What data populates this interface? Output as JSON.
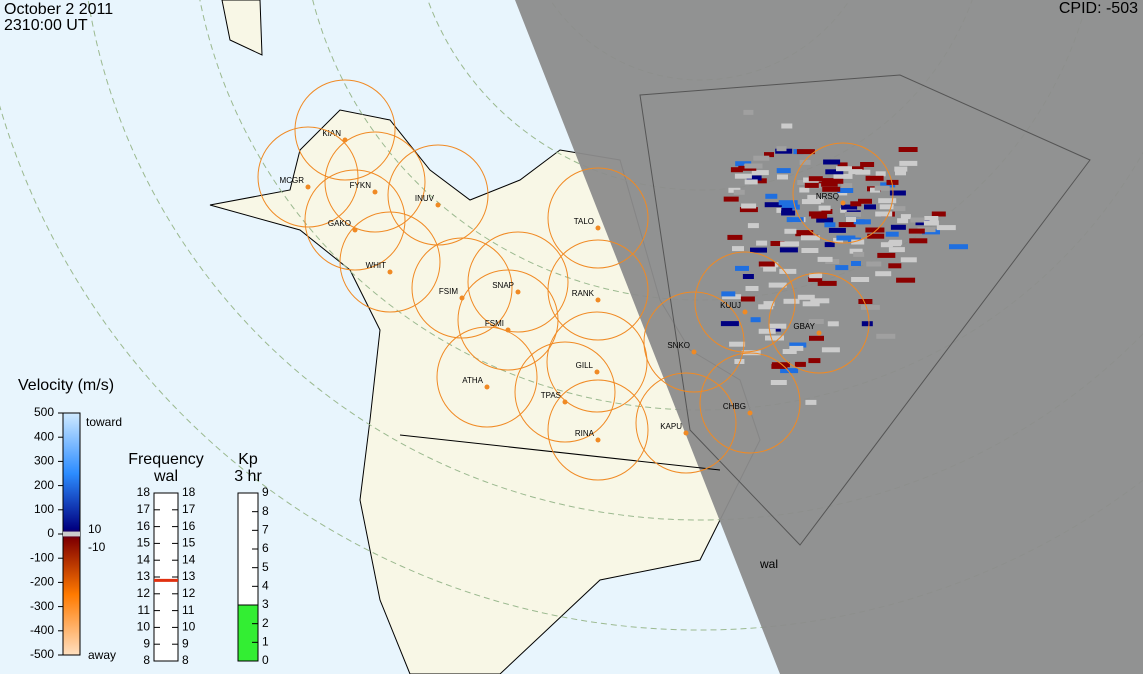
{
  "header": {
    "date": "October  2 2011",
    "time": "2310:00 UT",
    "cpid": "CPID:  -503"
  },
  "stations": [
    "KIAN",
    "MCGR",
    "FYKN",
    "INUV",
    "GAKO",
    "WHIT",
    "FSIM",
    "SNAP",
    "FSMI",
    "RANK",
    "TALO",
    "ATHA",
    "GILL",
    "TPAS",
    "RINA",
    "SNKO",
    "KAPU",
    "KUUJ",
    "GBAY",
    "NRSQ",
    "CHBG"
  ],
  "radar_label": "wal",
  "velocity_scale": {
    "title": "Velocity (m/s)",
    "ticks": [
      500,
      400,
      300,
      200,
      100,
      0,
      -100,
      -200,
      -300,
      -400,
      -500
    ],
    "toward": "toward",
    "away": "away",
    "threshold_labels": [
      "10",
      "-10"
    ]
  },
  "frequency": {
    "title": "Frequency",
    "radar": "wal",
    "ticks": [
      8,
      9,
      10,
      11,
      12,
      13,
      14,
      15,
      16,
      17,
      18
    ],
    "value": 12.8
  },
  "kp": {
    "title": "Kp",
    "subtitle": "3 hr",
    "ticks": [
      0,
      1,
      2,
      3,
      4,
      5,
      6,
      7,
      8,
      9
    ],
    "value": 3
  }
}
